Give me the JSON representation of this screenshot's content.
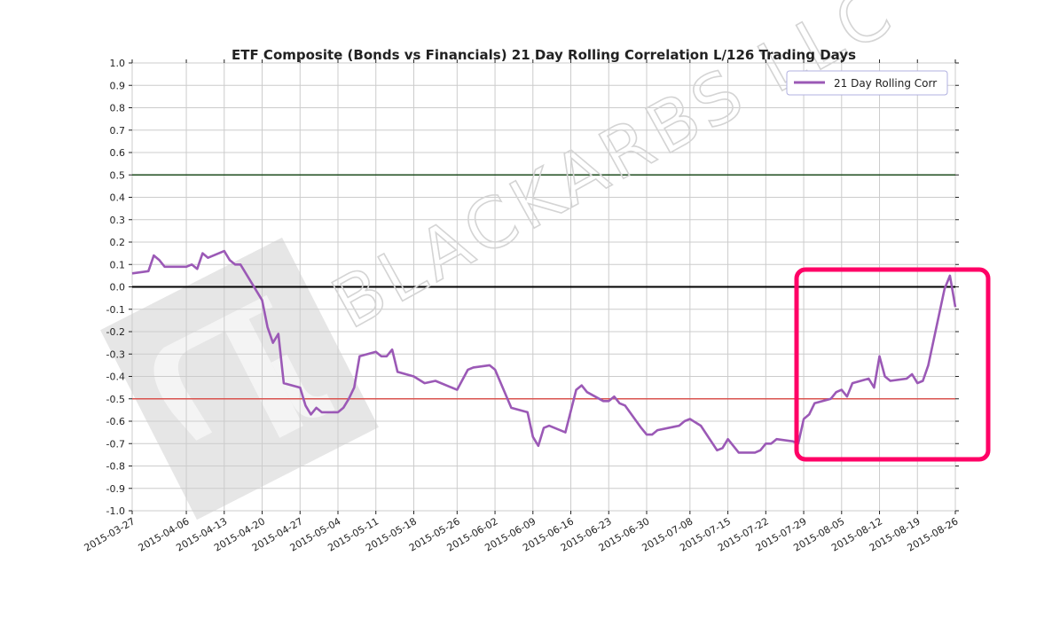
{
  "chart_data": {
    "type": "line",
    "title": "ETF Composite (Bonds vs Financials) 21 Day Rolling Correlation L/126 Trading Days",
    "xlabel": "",
    "ylabel": "",
    "ylim": [
      -1.0,
      1.0
    ],
    "xlim": [
      "2015-03-27",
      "2015-08-26"
    ],
    "grid": true,
    "legend": "top-right",
    "y_ticks": [
      "-1.0",
      "-0.9",
      "-0.8",
      "-0.7",
      "-0.6",
      "-0.5",
      "-0.4",
      "-0.3",
      "-0.2",
      "-0.1",
      "0.0",
      "0.1",
      "0.2",
      "0.3",
      "0.4",
      "0.5",
      "0.6",
      "0.7",
      "0.8",
      "0.9",
      "1.0"
    ],
    "x_ticks": [
      "2015-03-27",
      "2015-04-06",
      "2015-04-13",
      "2015-04-20",
      "2015-04-27",
      "2015-05-04",
      "2015-05-11",
      "2015-05-18",
      "2015-05-26",
      "2015-06-02",
      "2015-06-09",
      "2015-06-16",
      "2015-06-23",
      "2015-06-30",
      "2015-07-08",
      "2015-07-15",
      "2015-07-22",
      "2015-07-29",
      "2015-08-05",
      "2015-08-12",
      "2015-08-19",
      "2015-08-26"
    ],
    "reference_lines": [
      {
        "y": 0.5,
        "color": "#1f4d1f"
      },
      {
        "y": 0.0,
        "color": "#000000"
      },
      {
        "y": -0.5,
        "color": "#d9534f"
      }
    ],
    "series": [
      {
        "name": "21 Day Rolling Corr",
        "color": "#9b59b6",
        "x": [
          "2015-03-27",
          "2015-03-30",
          "2015-03-31",
          "2015-04-01",
          "2015-04-02",
          "2015-04-06",
          "2015-04-07",
          "2015-04-08",
          "2015-04-09",
          "2015-04-10",
          "2015-04-13",
          "2015-04-14",
          "2015-04-15",
          "2015-04-16",
          "2015-04-20",
          "2015-04-21",
          "2015-04-22",
          "2015-04-23",
          "2015-04-24",
          "2015-04-27",
          "2015-04-28",
          "2015-04-29",
          "2015-04-30",
          "2015-05-01",
          "2015-05-04",
          "2015-05-05",
          "2015-05-06",
          "2015-05-07",
          "2015-05-08",
          "2015-05-11",
          "2015-05-12",
          "2015-05-13",
          "2015-05-14",
          "2015-05-15",
          "2015-05-18",
          "2015-05-20",
          "2015-05-22",
          "2015-05-26",
          "2015-05-28",
          "2015-05-29",
          "2015-06-01",
          "2015-06-02",
          "2015-06-05",
          "2015-06-08",
          "2015-06-09",
          "2015-06-10",
          "2015-06-11",
          "2015-06-12",
          "2015-06-15",
          "2015-06-17",
          "2015-06-18",
          "2015-06-19",
          "2015-06-22",
          "2015-06-23",
          "2015-06-24",
          "2015-06-25",
          "2015-06-26",
          "2015-06-29",
          "2015-06-30",
          "2015-07-01",
          "2015-07-02",
          "2015-07-06",
          "2015-07-07",
          "2015-07-08",
          "2015-07-10",
          "2015-07-13",
          "2015-07-14",
          "2015-07-15",
          "2015-07-17",
          "2015-07-20",
          "2015-07-21",
          "2015-07-22",
          "2015-07-23",
          "2015-07-24",
          "2015-07-27",
          "2015-07-28",
          "2015-07-29",
          "2015-07-30",
          "2015-07-31",
          "2015-08-03",
          "2015-08-04",
          "2015-08-05",
          "2015-08-06",
          "2015-08-07",
          "2015-08-10",
          "2015-08-11",
          "2015-08-12",
          "2015-08-13",
          "2015-08-14",
          "2015-08-17",
          "2015-08-18",
          "2015-08-19",
          "2015-08-20",
          "2015-08-21",
          "2015-08-24",
          "2015-08-25",
          "2015-08-26"
        ],
        "values": [
          0.06,
          0.07,
          0.14,
          0.12,
          0.09,
          0.09,
          0.1,
          0.08,
          0.15,
          0.13,
          0.16,
          0.12,
          0.1,
          0.1,
          -0.06,
          -0.18,
          -0.25,
          -0.21,
          -0.43,
          -0.45,
          -0.53,
          -0.57,
          -0.54,
          -0.56,
          -0.56,
          -0.54,
          -0.5,
          -0.45,
          -0.31,
          -0.29,
          -0.31,
          -0.31,
          -0.28,
          -0.38,
          -0.4,
          -0.43,
          -0.42,
          -0.46,
          -0.37,
          -0.36,
          -0.35,
          -0.37,
          -0.54,
          -0.56,
          -0.67,
          -0.71,
          -0.63,
          -0.62,
          -0.65,
          -0.46,
          -0.44,
          -0.47,
          -0.51,
          -0.51,
          -0.49,
          -0.52,
          -0.53,
          -0.63,
          -0.66,
          -0.66,
          -0.64,
          -0.62,
          -0.6,
          -0.59,
          -0.62,
          -0.73,
          -0.72,
          -0.68,
          -0.74,
          -0.74,
          -0.73,
          -0.7,
          -0.7,
          -0.68,
          -0.69,
          -0.7,
          -0.59,
          -0.57,
          -0.52,
          -0.5,
          -0.47,
          -0.46,
          -0.49,
          -0.43,
          -0.41,
          -0.45,
          -0.31,
          -0.4,
          -0.42,
          -0.41,
          -0.39,
          -0.43,
          -0.42,
          -0.35,
          -0.01,
          0.05,
          -0.09
        ]
      }
    ]
  },
  "watermark": {
    "text": "BLACKARBS LLC"
  },
  "annotation": {
    "color": "#ff0066"
  }
}
